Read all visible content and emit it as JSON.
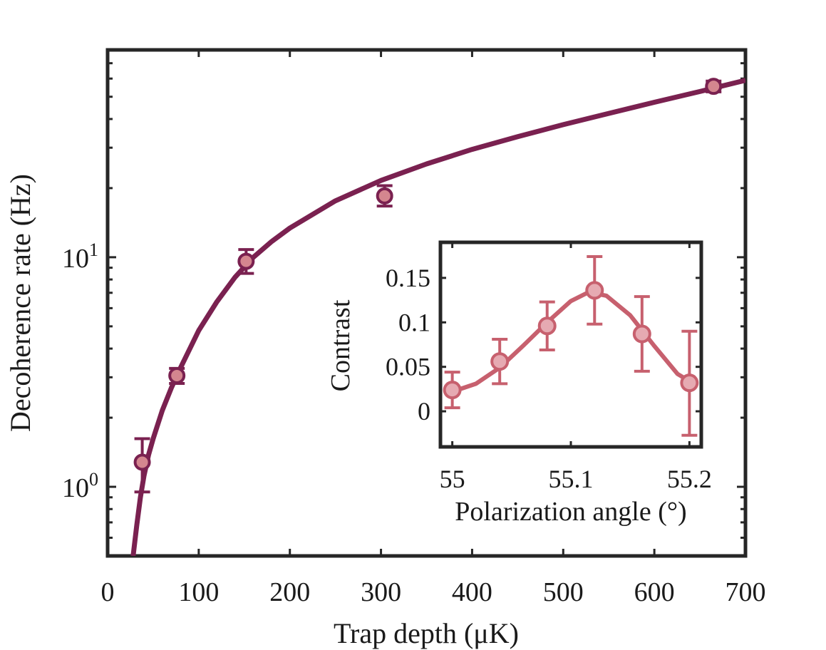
{
  "chart_data": [
    {
      "type": "scatter",
      "name": "main",
      "xlabel": "Trap depth (μK)",
      "ylabel": "Decoherence rate (Hz)",
      "yscale": "log",
      "xlim": [
        0,
        700
      ],
      "ylim": [
        0.5,
        80
      ],
      "xticks": [
        {
          "value": 0,
          "label": "0"
        },
        {
          "value": 100,
          "label": "100"
        },
        {
          "value": 200,
          "label": "200"
        },
        {
          "value": 300,
          "label": "300"
        },
        {
          "value": 400,
          "label": "400"
        },
        {
          "value": 500,
          "label": "500"
        },
        {
          "value": 600,
          "label": "600"
        },
        {
          "value": 700,
          "label": "700"
        }
      ],
      "yticks": [
        {
          "value": 1,
          "base": "10",
          "exp": "0"
        },
        {
          "value": 10,
          "base": "10",
          "exp": "1"
        }
      ],
      "color": "#7a2150",
      "marker_fill": "#d4868f",
      "points": [
        {
          "x": 38,
          "y": 1.28,
          "ylow": 0.95,
          "yhigh": 1.62
        },
        {
          "x": 76,
          "y": 3.05,
          "ylow": 2.82,
          "yhigh": 3.28,
          "xerr": 6
        },
        {
          "x": 152,
          "y": 9.6,
          "ylow": 8.5,
          "yhigh": 10.8,
          "xerr": 7
        },
        {
          "x": 304,
          "y": 18.5,
          "ylow": 16.7,
          "yhigh": 20.5,
          "xerr": 7
        },
        {
          "x": 665,
          "y": 55.5,
          "ylow": 52.5,
          "yhigh": 58.5,
          "xerr": 8
        }
      ],
      "fit": [
        [
          28,
          0.5
        ],
        [
          32,
          0.68
        ],
        [
          36,
          0.9
        ],
        [
          40,
          1.12
        ],
        [
          45,
          1.38
        ],
        [
          50,
          1.62
        ],
        [
          60,
          2.15
        ],
        [
          70,
          2.7
        ],
        [
          80,
          3.3
        ],
        [
          100,
          4.8
        ],
        [
          120,
          6.4
        ],
        [
          140,
          8.2
        ],
        [
          160,
          10.0
        ],
        [
          180,
          11.7
        ],
        [
          200,
          13.4
        ],
        [
          250,
          17.6
        ],
        [
          300,
          21.6
        ],
        [
          350,
          25.5
        ],
        [
          400,
          29.5
        ],
        [
          450,
          33.5
        ],
        [
          500,
          37.8
        ],
        [
          550,
          42.3
        ],
        [
          600,
          47.3
        ],
        [
          650,
          52.7
        ],
        [
          700,
          59.0
        ]
      ]
    },
    {
      "type": "scatter",
      "name": "inset",
      "xlabel": "Polarization angle (°)",
      "ylabel": "Contrast",
      "xlim": [
        54.99,
        55.21
      ],
      "ylim": [
        -0.04,
        0.19
      ],
      "xticks": [
        {
          "value": 55,
          "label": "55"
        },
        {
          "value": 55.1,
          "label": "55.1"
        },
        {
          "value": 55.2,
          "label": "55.2"
        }
      ],
      "yticks": [
        {
          "value": 0,
          "label": "0"
        },
        {
          "value": 0.05,
          "label": "0.05"
        },
        {
          "value": 0.1,
          "label": "0.1"
        },
        {
          "value": 0.15,
          "label": "0.15"
        }
      ],
      "color": "#c7606e",
      "marker_fill": "#e6aab2",
      "points": [
        {
          "x": 55.0,
          "y": 0.024,
          "ylow": 0.004,
          "yhigh": 0.044
        },
        {
          "x": 55.04,
          "y": 0.056,
          "ylow": 0.031,
          "yhigh": 0.081
        },
        {
          "x": 55.08,
          "y": 0.096,
          "ylow": 0.069,
          "yhigh": 0.123
        },
        {
          "x": 55.12,
          "y": 0.136,
          "ylow": 0.098,
          "yhigh": 0.174
        },
        {
          "x": 55.16,
          "y": 0.087,
          "ylow": 0.045,
          "yhigh": 0.129
        },
        {
          "x": 55.2,
          "y": 0.032,
          "ylow": -0.027,
          "yhigh": 0.09
        }
      ],
      "fit": [
        [
          55.0,
          0.022
        ],
        [
          55.02,
          0.031
        ],
        [
          55.04,
          0.049
        ],
        [
          55.06,
          0.074
        ],
        [
          55.08,
          0.1
        ],
        [
          55.1,
          0.124
        ],
        [
          55.115,
          0.134
        ],
        [
          55.13,
          0.13
        ],
        [
          55.15,
          0.108
        ],
        [
          55.17,
          0.074
        ],
        [
          55.19,
          0.042
        ],
        [
          55.205,
          0.03
        ]
      ]
    }
  ]
}
